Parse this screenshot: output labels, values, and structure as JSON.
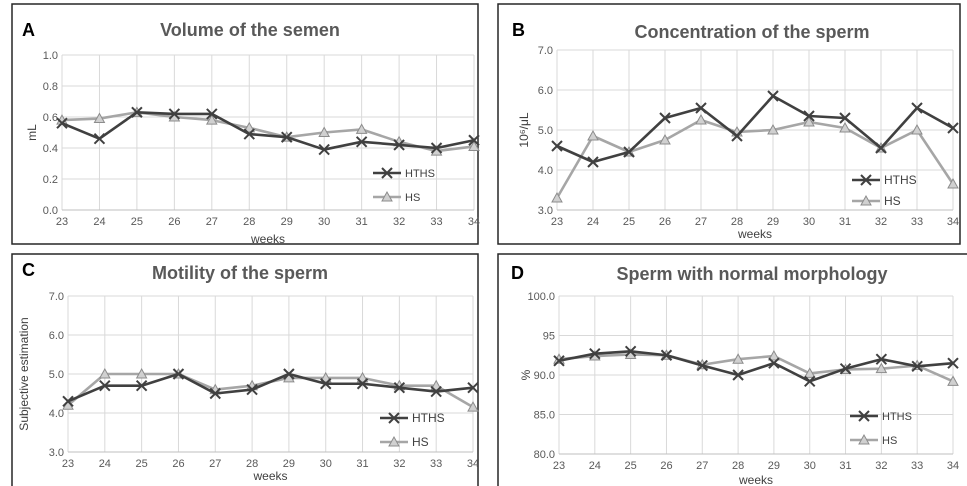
{
  "chart_data": [
    {
      "type": "line",
      "panel_letter": "A",
      "title": "Volume of the semen",
      "xlabel": "weeks",
      "ylabel": "mL",
      "ylim": [
        0.0,
        1.0
      ],
      "y_ticks": [
        "0.0",
        "0.2",
        "0.4",
        "0.6",
        "0.8",
        "1.0"
      ],
      "x": [
        "23",
        "24",
        "25",
        "26",
        "27",
        "28",
        "29",
        "30",
        "31",
        "32",
        "33",
        "34"
      ],
      "grid": true,
      "legend": "bottom-right",
      "series": [
        {
          "name": "HTHS",
          "color": "#404040",
          "marker": "x-mark",
          "values": [
            0.56,
            0.46,
            0.63,
            0.62,
            0.62,
            0.49,
            0.47,
            0.39,
            0.44,
            0.42,
            0.4,
            0.45
          ]
        },
        {
          "name": "HS",
          "color": "#a6a6a6",
          "marker": "triangle",
          "values": [
            0.58,
            0.59,
            0.63,
            0.6,
            0.58,
            0.53,
            0.47,
            0.5,
            0.52,
            0.44,
            0.38,
            0.41
          ]
        }
      ]
    },
    {
      "type": "line",
      "panel_letter": "B",
      "title": "Concentration of the sperm",
      "xlabel": "weeks",
      "ylabel": "10⁶/μL",
      "ylim": [
        3.0,
        7.0
      ],
      "y_ticks": [
        "3.0",
        "4.0",
        "5.0",
        "6.0",
        "7.0"
      ],
      "x": [
        "23",
        "24",
        "25",
        "26",
        "27",
        "28",
        "29",
        "30",
        "31",
        "32",
        "33",
        "34"
      ],
      "grid": true,
      "legend": "bottom-right",
      "series": [
        {
          "name": "HTHS",
          "color": "#404040",
          "marker": "x-mark",
          "values": [
            4.6,
            4.2,
            4.45,
            5.3,
            5.55,
            4.85,
            5.85,
            5.35,
            5.3,
            4.55,
            5.55,
            5.05
          ]
        },
        {
          "name": "HS",
          "color": "#a6a6a6",
          "marker": "triangle",
          "values": [
            3.3,
            4.85,
            4.45,
            4.75,
            5.25,
            4.95,
            5.0,
            5.2,
            5.05,
            4.55,
            5.0,
            3.65
          ]
        }
      ]
    },
    {
      "type": "line",
      "panel_letter": "C",
      "title": "Motility of the sperm",
      "xlabel": "weeks",
      "ylabel": "Subjective estimation",
      "ylim": [
        3.0,
        7.0
      ],
      "y_ticks": [
        "3.0",
        "4.0",
        "5.0",
        "6.0",
        "7.0"
      ],
      "x": [
        "23",
        "24",
        "25",
        "26",
        "27",
        "28",
        "29",
        "30",
        "31",
        "32",
        "33",
        "34"
      ],
      "grid": true,
      "legend": "bottom-right",
      "series": [
        {
          "name": "HTHS",
          "color": "#404040",
          "marker": "x-mark",
          "values": [
            4.3,
            4.7,
            4.7,
            5.0,
            4.5,
            4.6,
            5.0,
            4.75,
            4.75,
            4.65,
            4.55,
            4.65
          ]
        },
        {
          "name": "HS",
          "color": "#a6a6a6",
          "marker": "triangle",
          "values": [
            4.2,
            5.0,
            5.0,
            5.0,
            4.6,
            4.7,
            4.9,
            4.9,
            4.9,
            4.7,
            4.7,
            4.15
          ]
        }
      ]
    },
    {
      "type": "line",
      "panel_letter": "D",
      "title": "Sperm with normal morphology",
      "xlabel": "weeks",
      "ylabel": "%",
      "ylim": [
        80.0,
        100.0
      ],
      "y_ticks": [
        "80.0",
        "85.0",
        "90.0",
        "95",
        "100.0"
      ],
      "x": [
        "23",
        "24",
        "25",
        "26",
        "27",
        "28",
        "29",
        "30",
        "31",
        "32",
        "33",
        "34"
      ],
      "grid": true,
      "legend": "bottom-right",
      "series": [
        {
          "name": "HTHS",
          "color": "#404040",
          "marker": "x-mark",
          "values": [
            91.8,
            92.7,
            93.0,
            92.5,
            91.2,
            90.0,
            91.5,
            89.2,
            90.8,
            92.0,
            91.1,
            91.5
          ]
        },
        {
          "name": "HS",
          "color": "#a6a6a6",
          "marker": "triangle",
          "values": [
            92.0,
            92.4,
            92.6,
            92.5,
            91.3,
            92.0,
            92.4,
            90.2,
            90.7,
            90.8,
            91.2,
            89.2
          ]
        }
      ]
    }
  ]
}
